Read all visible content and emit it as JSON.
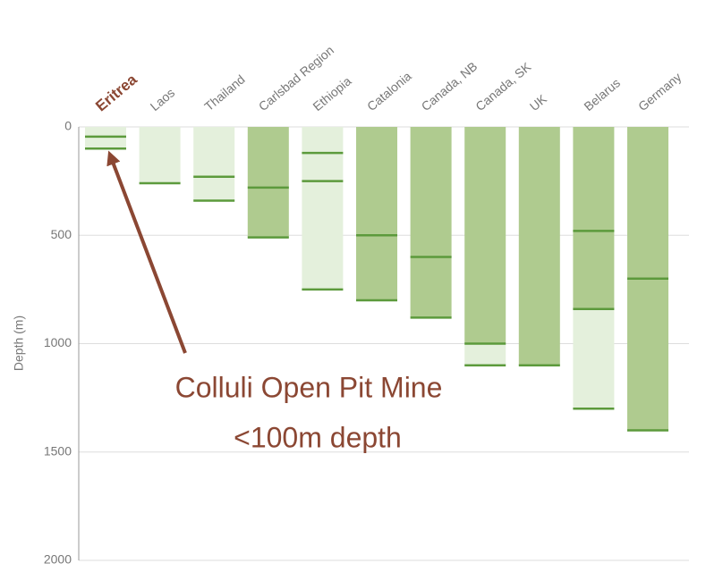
{
  "chart_data": {
    "type": "range-bar",
    "y_label": "Depth (m)",
    "categories": [
      "Eritrea",
      "Laos",
      "Thailand",
      "Carlsbad Region",
      "Ethiopia",
      "Catalonia",
      "Canada, NB",
      "Canada, SK",
      "UK",
      "Belarus",
      "Germany"
    ],
    "bars": [
      {
        "segments": [
          {
            "from": 0,
            "to": 100,
            "tone": "light"
          }
        ],
        "seams": [
          45,
          100
        ]
      },
      {
        "segments": [
          {
            "from": 0,
            "to": 260,
            "tone": "light"
          }
        ],
        "seams": [
          260
        ]
      },
      {
        "segments": [
          {
            "from": 0,
            "to": 340,
            "tone": "light"
          }
        ],
        "seams": [
          230,
          340
        ]
      },
      {
        "segments": [
          {
            "from": 0,
            "to": 510,
            "tone": "dark"
          }
        ],
        "seams": [
          280,
          510
        ]
      },
      {
        "segments": [
          {
            "from": 0,
            "to": 750,
            "tone": "light"
          }
        ],
        "seams": [
          120,
          250,
          750
        ]
      },
      {
        "segments": [
          {
            "from": 0,
            "to": 800,
            "tone": "dark"
          }
        ],
        "seams": [
          500,
          800
        ]
      },
      {
        "segments": [
          {
            "from": 0,
            "to": 880,
            "tone": "dark"
          }
        ],
        "seams": [
          600,
          880
        ]
      },
      {
        "segments": [
          {
            "from": 0,
            "to": 1000,
            "tone": "dark"
          },
          {
            "from": 1000,
            "to": 1100,
            "tone": "light"
          }
        ],
        "seams": [
          1000,
          1100
        ]
      },
      {
        "segments": [
          {
            "from": 0,
            "to": 1100,
            "tone": "dark"
          }
        ],
        "seams": [
          1100
        ]
      },
      {
        "segments": [
          {
            "from": 0,
            "to": 840,
            "tone": "dark"
          },
          {
            "from": 840,
            "to": 1300,
            "tone": "light"
          }
        ],
        "seams": [
          480,
          840,
          1300
        ]
      },
      {
        "segments": [
          {
            "from": 0,
            "to": 1400,
            "tone": "dark"
          }
        ],
        "seams": [
          700,
          1400
        ]
      }
    ],
    "colors": {
      "light": "#e4f0dc",
      "dark": "#afcb8f",
      "seam": "#5c9a3c"
    },
    "highlight_index": 0,
    "highlight_color": "#8b4733",
    "ylim": [
      0,
      2000
    ],
    "yticks": [
      0,
      500,
      1000,
      1500,
      2000
    ],
    "grid": true,
    "annotation": [
      "Colluli Open Pit Mine",
      "<100m depth"
    ]
  }
}
